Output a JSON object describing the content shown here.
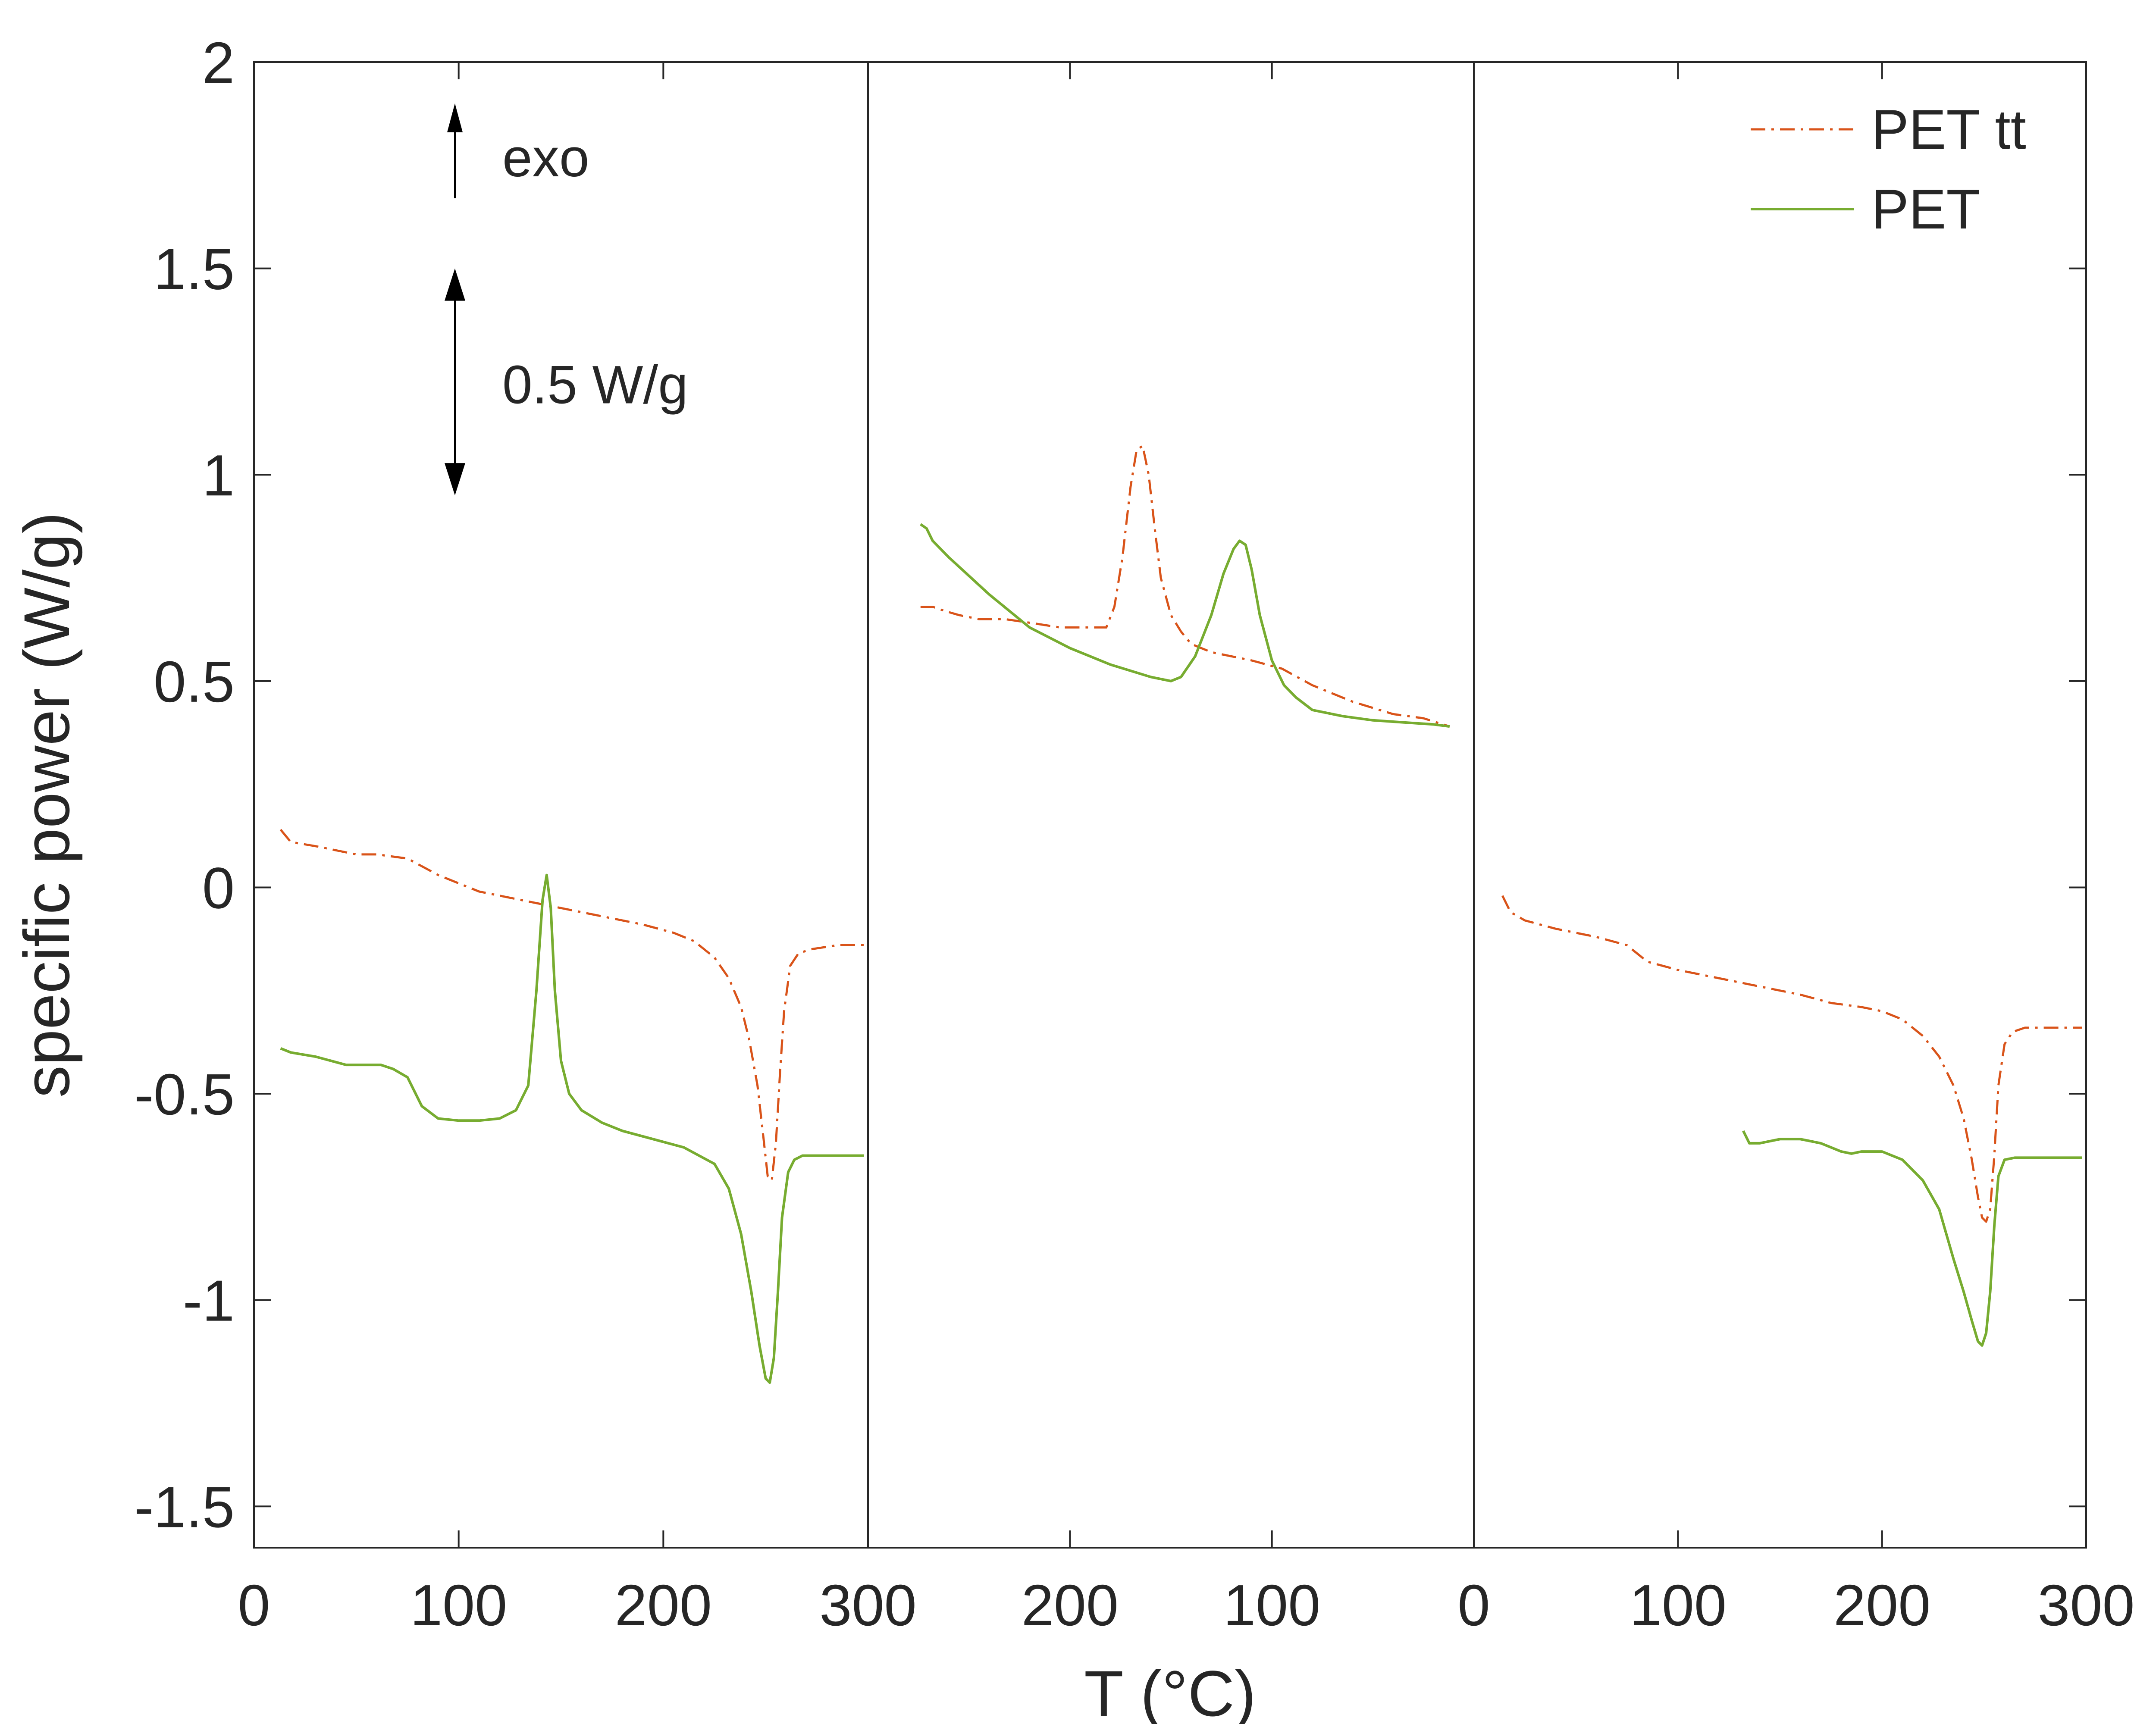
{
  "chart_data": {
    "type": "line",
    "xlabel": "T (°C)",
    "ylabel": "specific power (W/g)",
    "ylim": [
      -1.6,
      2
    ],
    "yticks": [
      -1.5,
      -1,
      -0.5,
      0,
      0.5,
      1,
      1.5,
      2
    ],
    "ytick_labels": [
      "-1.5",
      "-1",
      "-0.5",
      "0",
      "0.5",
      "1",
      "1.5",
      "2"
    ],
    "grid": false,
    "legend": {
      "placement": "top-right",
      "entries": [
        {
          "label": "PET tt",
          "color": "#D95319",
          "style": "dash-dot"
        },
        {
          "label": "PET",
          "color": "#77AC30",
          "style": "solid"
        }
      ]
    },
    "annotations": {
      "exo_label": "exo",
      "scale_label": "0.5 W/g",
      "scale_bar_span": [
        0.95,
        1.5
      ]
    },
    "panels": [
      {
        "xlim": [
          0,
          300
        ],
        "direction": "increasing",
        "xtick_labels": [
          "0",
          "100",
          "200",
          "300"
        ],
        "series": [
          {
            "name": "PET tt",
            "color": "#D95319",
            "style": "dash-dot",
            "x": [
              13,
              18,
              30,
              50,
              60,
              75,
              90,
              110,
              130,
              150,
              170,
              190,
              205,
              215,
              225,
              232,
              238,
              242,
              246,
              249,
              251,
              253,
              255,
              257,
              259,
              262,
              266,
              272,
              285,
              298
            ],
            "y": [
              0.14,
              0.11,
              0.1,
              0.08,
              0.08,
              0.07,
              0.03,
              -0.01,
              -0.03,
              -0.05,
              -0.07,
              -0.09,
              -0.11,
              -0.13,
              -0.17,
              -0.22,
              -0.29,
              -0.37,
              -0.48,
              -0.61,
              -0.7,
              -0.71,
              -0.62,
              -0.45,
              -0.3,
              -0.19,
              -0.16,
              -0.15,
              -0.14,
              -0.14
            ]
          },
          {
            "name": "PET",
            "color": "#77AC30",
            "style": "solid",
            "x": [
              13,
              18,
              30,
              45,
              55,
              62,
              68,
              75,
              82,
              90,
              100,
              110,
              120,
              128,
              134,
              138,
              141,
              143,
              145,
              147,
              150,
              154,
              160,
              170,
              180,
              195,
              210,
              225,
              232,
              238,
              243,
              247,
              250,
              252,
              254,
              256,
              258,
              261,
              264,
              268,
              275,
              290,
              298
            ],
            "y": [
              -0.39,
              -0.4,
              -0.41,
              -0.43,
              -0.43,
              -0.43,
              -0.44,
              -0.46,
              -0.53,
              -0.56,
              -0.565,
              -0.565,
              -0.56,
              -0.54,
              -0.48,
              -0.25,
              -0.03,
              0.03,
              -0.05,
              -0.25,
              -0.42,
              -0.5,
              -0.54,
              -0.57,
              -0.59,
              -0.61,
              -0.63,
              -0.67,
              -0.73,
              -0.84,
              -0.98,
              -1.11,
              -1.19,
              -1.2,
              -1.14,
              -0.98,
              -0.8,
              -0.69,
              -0.66,
              -0.65,
              -0.65,
              -0.65,
              -0.65
            ]
          }
        ]
      },
      {
        "xlim": [
          300,
          0
        ],
        "direction": "decreasing",
        "xtick_labels": [
          "300",
          "200",
          "100",
          "0"
        ],
        "series": [
          {
            "name": "PET tt",
            "color": "#D95319",
            "style": "dash-dot",
            "x": [
              274,
              268,
              262,
              255,
              245,
              232,
              218,
              205,
              190,
              182,
              178,
              174,
              170,
              167,
              164,
              161,
              158,
              155,
              150,
              145,
              140,
              130,
              120,
              110,
              95,
              80,
              60,
              40,
              25,
              12
            ],
            "y": [
              0.68,
              0.68,
              0.67,
              0.66,
              0.65,
              0.65,
              0.64,
              0.63,
              0.63,
              0.63,
              0.68,
              0.8,
              0.97,
              1.06,
              1.07,
              1.0,
              0.87,
              0.75,
              0.66,
              0.62,
              0.59,
              0.57,
              0.56,
              0.55,
              0.53,
              0.49,
              0.45,
              0.42,
              0.41,
              0.39
            ]
          },
          {
            "name": "PET",
            "color": "#77AC30",
            "style": "solid",
            "x": [
              274,
              271,
              268,
              260,
              240,
              220,
              200,
              180,
              160,
              150,
              145,
              138,
              130,
              124,
              119,
              116,
              113,
              110,
              106,
              100,
              94,
              88,
              80,
              65,
              50,
              35,
              20,
              12
            ],
            "y": [
              0.88,
              0.87,
              0.84,
              0.8,
              0.71,
              0.63,
              0.58,
              0.54,
              0.51,
              0.5,
              0.51,
              0.56,
              0.66,
              0.76,
              0.82,
              0.84,
              0.83,
              0.77,
              0.66,
              0.55,
              0.49,
              0.46,
              0.43,
              0.415,
              0.405,
              0.4,
              0.395,
              0.39
            ]
          }
        ]
      },
      {
        "xlim": [
          0,
          300
        ],
        "direction": "increasing",
        "xtick_labels": [
          "0",
          "100",
          "200",
          "300"
        ],
        "series": [
          {
            "name": "PET tt",
            "color": "#D95319",
            "style": "dash-dot",
            "x": [
              14,
              18,
              25,
              40,
              60,
              75,
              85,
              100,
              120,
              140,
              160,
              175,
              190,
              200,
              210,
              220,
              228,
              235,
              240,
              244,
              247,
              249,
              251,
              253,
              255,
              257,
              260,
              264,
              270,
              285,
              298
            ],
            "y": [
              -0.02,
              -0.06,
              -0.08,
              -0.1,
              -0.12,
              -0.14,
              -0.18,
              -0.2,
              -0.22,
              -0.24,
              -0.26,
              -0.28,
              -0.29,
              -0.3,
              -0.32,
              -0.36,
              -0.41,
              -0.48,
              -0.56,
              -0.66,
              -0.75,
              -0.8,
              -0.81,
              -0.78,
              -0.65,
              -0.48,
              -0.38,
              -0.35,
              -0.34,
              -0.34,
              -0.34
            ]
          },
          {
            "name": "PET",
            "color": "#77AC30",
            "style": "solid",
            "x": [
              132,
              135,
              140,
              150,
              160,
              170,
              180,
              185,
              190,
              200,
              210,
              220,
              228,
              235,
              240,
              244,
              247,
              249,
              251,
              253,
              255,
              257,
              260,
              265,
              275,
              290,
              298
            ],
            "y": [
              -0.59,
              -0.62,
              -0.62,
              -0.61,
              -0.61,
              -0.62,
              -0.64,
              -0.645,
              -0.64,
              -0.64,
              -0.66,
              -0.71,
              -0.78,
              -0.9,
              -0.98,
              -1.05,
              -1.1,
              -1.11,
              -1.08,
              -0.98,
              -0.82,
              -0.7,
              -0.66,
              -0.655,
              -0.655,
              -0.655,
              -0.655
            ]
          }
        ]
      }
    ]
  }
}
